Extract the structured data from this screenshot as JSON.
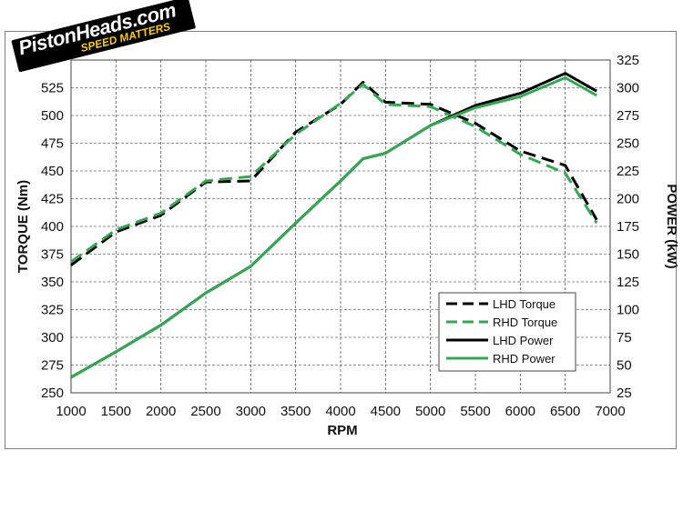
{
  "logo": {
    "name": "PistonHeads.com",
    "tagline": "SPEED MATTERS"
  },
  "chart_data": {
    "type": "line",
    "title": "",
    "xlabel": "RPM",
    "ylabel_left": "TORQUE (Nm)",
    "ylabel_right": "POWER (kW)",
    "xlim": [
      1000,
      7000
    ],
    "ylim_left": [
      250,
      550
    ],
    "ylim_right": [
      25,
      325
    ],
    "x_ticks": [
      1000,
      1500,
      2000,
      2500,
      3000,
      3500,
      4000,
      4500,
      5000,
      5500,
      6000,
      6500,
      7000
    ],
    "y_left_ticks": [
      250,
      275,
      300,
      325,
      350,
      375,
      400,
      425,
      450,
      475,
      500,
      525
    ],
    "y_right_ticks": [
      25,
      50,
      75,
      100,
      125,
      150,
      175,
      200,
      225,
      250,
      275,
      300,
      325
    ],
    "grid": true,
    "legend_position": "bottom-right",
    "series": [
      {
        "name": "LHD Torque",
        "axis": "left",
        "color": "#000000",
        "dash": true,
        "x": [
          1000,
          1500,
          2000,
          2250,
          2500,
          3000,
          3500,
          4000,
          4250,
          4500,
          5000,
          5500,
          6000,
          6500,
          6850
        ],
        "y": [
          365,
          395,
          410,
          425,
          440,
          441,
          485,
          510,
          530,
          512,
          510,
          493,
          468,
          455,
          406
        ]
      },
      {
        "name": "RHD Torque",
        "axis": "left",
        "color": "#33a853",
        "dash": true,
        "x": [
          1000,
          1500,
          2000,
          2500,
          3000,
          3500,
          4000,
          4250,
          4500,
          5000,
          5500,
          6000,
          6500,
          6850
        ],
        "y": [
          368,
          397,
          412,
          441,
          445,
          483,
          511,
          528,
          510,
          508,
          490,
          465,
          448,
          403
        ]
      },
      {
        "name": "LHD Power",
        "axis": "right",
        "color": "#000000",
        "dash": false,
        "x": [
          1000,
          1500,
          2000,
          2500,
          3000,
          3500,
          4000,
          4250,
          4500,
          5000,
          5500,
          6000,
          6500,
          6850
        ],
        "y": [
          39,
          62,
          86,
          115,
          139,
          178,
          216,
          236,
          241,
          266,
          284,
          295,
          313,
          297
        ]
      },
      {
        "name": "RHD Power",
        "axis": "right",
        "color": "#33a853",
        "dash": false,
        "x": [
          1000,
          1500,
          2000,
          2500,
          3000,
          3500,
          4000,
          4250,
          4500,
          5000,
          5500,
          6000,
          6500,
          6850
        ],
        "y": [
          39,
          62,
          86,
          115,
          139,
          178,
          216,
          236,
          241,
          266,
          282,
          292,
          309,
          293
        ]
      }
    ]
  }
}
